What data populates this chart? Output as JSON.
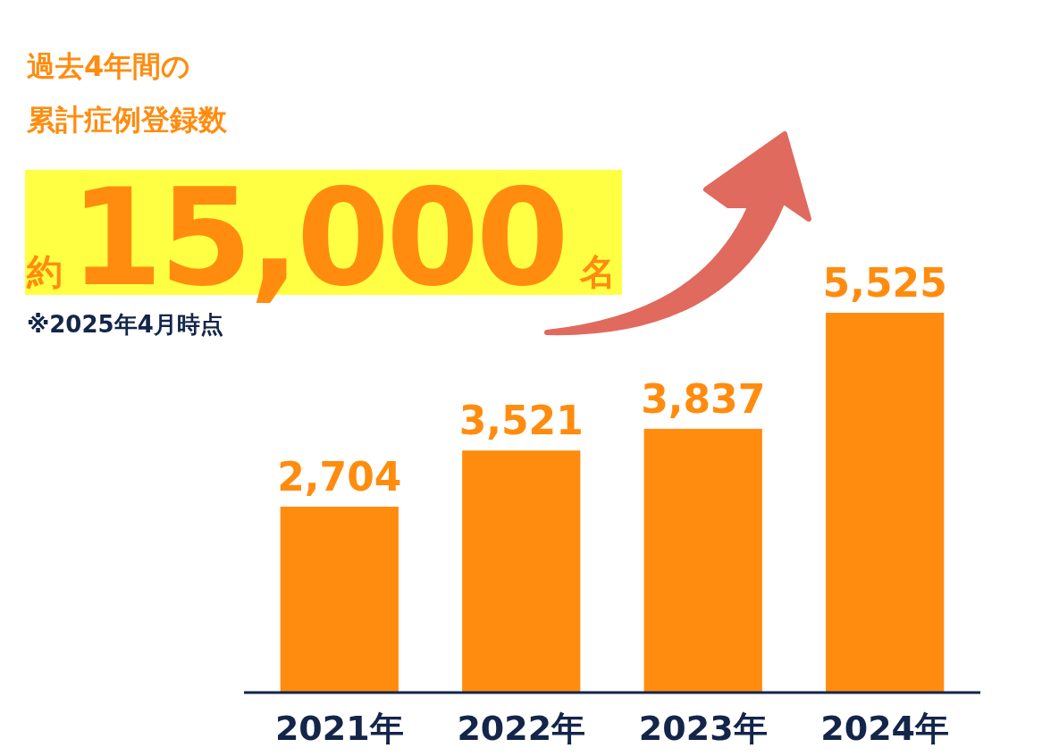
{
  "chart_data": {
    "type": "bar",
    "title": "過去4年間の",
    "subtitle": "累計症例登録数",
    "categories": [
      "2021年",
      "2022年",
      "2023年",
      "2024年"
    ],
    "values": [
      2704,
      3521,
      3837,
      5525
    ],
    "color": "#ff8c0f",
    "data_labels": true,
    "value_labels": [
      "2,704",
      "3,521",
      "3,837",
      "5,525"
    ],
    "annotations": [
      "約15,000名",
      "※2025年4月時点"
    ]
  }
}
